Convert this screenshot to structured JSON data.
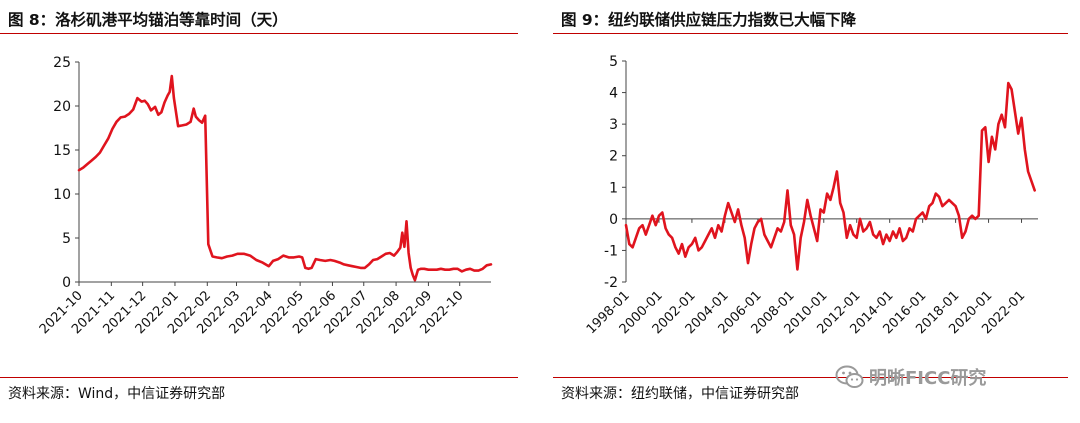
{
  "figures": [
    {
      "title": "图 8：洛杉矶港平均锚泊等靠时间（天）",
      "source": "资料来源：Wind，中信证券研究部"
    },
    {
      "title": "图 9：纽约联储供应链压力指数已大幅下降",
      "source": "资料来源：纽约联储，中信证券研究部"
    }
  ],
  "watermark": {
    "text": "明晰FICC研究",
    "icon": "wechat-icon"
  },
  "colors": {
    "accent": "#c00000",
    "line": "#e0141e",
    "axis": "#444444"
  },
  "chart_data": [
    {
      "type": "line",
      "title": "洛杉矶港平均锚泊等靠时间（天）",
      "xlabel": "",
      "ylabel": "",
      "x_range": [
        "2021-10-01",
        "2022-10-31"
      ],
      "ylim": [
        0,
        25
      ],
      "yticks": [
        "0",
        "5",
        "10",
        "15",
        "20",
        "25"
      ],
      "xticks": [
        "2021-10",
        "2021-11",
        "2021-12",
        "2022-01",
        "2022-02",
        "2022-03",
        "2022-04",
        "2022-05",
        "2022-06",
        "2022-07",
        "2022-08",
        "2022-09",
        "2022-10"
      ],
      "grid": false,
      "legend": "none",
      "series": [
        {
          "x": [
            "2021-10-01",
            "2021-10-05",
            "2021-10-09",
            "2021-10-13",
            "2021-10-17",
            "2021-10-21",
            "2021-10-25",
            "2021-10-29",
            "2021-11-02",
            "2021-11-06",
            "2021-11-10",
            "2021-11-14",
            "2021-11-18",
            "2021-11-22",
            "2021-11-26",
            "2021-11-30",
            "2021-12-03",
            "2021-12-06",
            "2021-12-09",
            "2021-12-13",
            "2021-12-16",
            "2021-12-19",
            "2021-12-22",
            "2021-12-25",
            "2021-12-27",
            "2021-12-29",
            "2021-12-31",
            "2022-01-04",
            "2022-01-08",
            "2022-01-12",
            "2022-01-16",
            "2022-01-19",
            "2022-01-21",
            "2022-01-24",
            "2022-01-27",
            "2022-01-30",
            "2022-02-02",
            "2022-02-06",
            "2022-02-10",
            "2022-02-15",
            "2022-02-20",
            "2022-02-25",
            "2022-03-02",
            "2022-03-08",
            "2022-03-14",
            "2022-03-20",
            "2022-03-26",
            "2022-04-01",
            "2022-04-05",
            "2022-04-10",
            "2022-04-15",
            "2022-04-20",
            "2022-04-25",
            "2022-04-30",
            "2022-05-03",
            "2022-05-06",
            "2022-05-09",
            "2022-05-12",
            "2022-05-16",
            "2022-05-20",
            "2022-05-25",
            "2022-05-30",
            "2022-06-03",
            "2022-06-08",
            "2022-06-12",
            "2022-06-16",
            "2022-06-20",
            "2022-06-24",
            "2022-06-28",
            "2022-07-02",
            "2022-07-06",
            "2022-07-10",
            "2022-07-14",
            "2022-07-18",
            "2022-07-22",
            "2022-07-26",
            "2022-07-30",
            "2022-08-02",
            "2022-08-05",
            "2022-08-07",
            "2022-08-09",
            "2022-08-11",
            "2022-08-13",
            "2022-08-15",
            "2022-08-17",
            "2022-08-19",
            "2022-08-22",
            "2022-08-25",
            "2022-08-28",
            "2022-09-01",
            "2022-09-05",
            "2022-09-09",
            "2022-09-13",
            "2022-09-17",
            "2022-09-21",
            "2022-09-25",
            "2022-09-29",
            "2022-10-03",
            "2022-10-07",
            "2022-10-11",
            "2022-10-15",
            "2022-10-19",
            "2022-10-23",
            "2022-10-27",
            "2022-10-31"
          ],
          "y": [
            12.7,
            13.0,
            13.4,
            13.8,
            14.2,
            14.7,
            15.5,
            16.3,
            17.4,
            18.2,
            18.7,
            18.8,
            19.1,
            19.6,
            20.9,
            20.5,
            20.6,
            20.2,
            19.5,
            19.9,
            19.0,
            19.3,
            20.4,
            21.2,
            21.6,
            23.4,
            20.9,
            17.7,
            17.8,
            17.9,
            18.2,
            19.7,
            18.8,
            18.4,
            18.1,
            18.9,
            4.3,
            2.9,
            2.8,
            2.7,
            2.9,
            3.0,
            3.2,
            3.2,
            3.0,
            2.5,
            2.2,
            1.8,
            2.4,
            2.6,
            3.0,
            2.8,
            2.8,
            2.9,
            2.8,
            1.6,
            1.5,
            1.6,
            2.6,
            2.5,
            2.4,
            2.5,
            2.4,
            2.2,
            2.0,
            1.9,
            1.8,
            1.7,
            1.6,
            1.6,
            2.0,
            2.5,
            2.6,
            2.9,
            3.2,
            3.3,
            3.0,
            3.4,
            3.9,
            5.6,
            4.0,
            6.9,
            3.3,
            1.6,
            0.8,
            0.2,
            1.4,
            1.5,
            1.5,
            1.4,
            1.4,
            1.4,
            1.5,
            1.4,
            1.4,
            1.5,
            1.5,
            1.2,
            1.4,
            1.5,
            1.3,
            1.3,
            1.5,
            1.9,
            2.0
          ]
        }
      ]
    },
    {
      "type": "line",
      "title": "纽约联储供应链压力指数",
      "xlabel": "",
      "ylabel": "",
      "x_range": [
        "1998-01",
        "2023-01"
      ],
      "ylim": [
        -2,
        5
      ],
      "yticks": [
        "-2",
        "-1",
        "0",
        "1",
        "2",
        "3",
        "4",
        "5"
      ],
      "xticks": [
        "1998-01",
        "2000-01",
        "2002-01",
        "2004-01",
        "2006-01",
        "2008-01",
        "2010-01",
        "2012-01",
        "2014-01",
        "2016-01",
        "2018-01",
        "2020-01",
        "2022-01"
      ],
      "grid": false,
      "legend": "none",
      "series": [
        {
          "x": [
            1998.0,
            1998.2,
            1998.4,
            1998.6,
            1998.8,
            1999.0,
            1999.2,
            1999.4,
            1999.6,
            1999.8,
            2000.0,
            2000.2,
            2000.4,
            2000.6,
            2000.8,
            2001.0,
            2001.2,
            2001.4,
            2001.6,
            2001.8,
            2002.0,
            2002.2,
            2002.4,
            2002.6,
            2002.8,
            2003.0,
            2003.2,
            2003.4,
            2003.6,
            2003.8,
            2004.0,
            2004.2,
            2004.4,
            2004.6,
            2004.8,
            2005.0,
            2005.2,
            2005.4,
            2005.6,
            2005.8,
            2006.0,
            2006.2,
            2006.4,
            2006.6,
            2006.8,
            2007.0,
            2007.2,
            2007.4,
            2007.6,
            2007.8,
            2008.0,
            2008.2,
            2008.4,
            2008.6,
            2008.8,
            2009.0,
            2009.2,
            2009.4,
            2009.6,
            2009.8,
            2010.0,
            2010.2,
            2010.4,
            2010.6,
            2010.8,
            2011.0,
            2011.2,
            2011.4,
            2011.6,
            2011.8,
            2012.0,
            2012.2,
            2012.4,
            2012.6,
            2012.8,
            2013.0,
            2013.2,
            2013.4,
            2013.6,
            2013.8,
            2014.0,
            2014.2,
            2014.4,
            2014.6,
            2014.8,
            2015.0,
            2015.2,
            2015.4,
            2015.6,
            2015.8,
            2016.0,
            2016.2,
            2016.4,
            2016.6,
            2016.8,
            2017.0,
            2017.2,
            2017.4,
            2017.6,
            2017.8,
            2018.0,
            2018.2,
            2018.4,
            2018.6,
            2018.8,
            2019.0,
            2019.2,
            2019.4,
            2019.6,
            2019.8,
            2020.0,
            2020.2,
            2020.4,
            2020.6,
            2020.8,
            2021.0,
            2021.2,
            2021.4,
            2021.6,
            2021.8,
            2022.0,
            2022.2,
            2022.4,
            2022.6,
            2022.8
          ],
          "y": [
            -0.2,
            -0.8,
            -0.9,
            -0.6,
            -0.3,
            -0.2,
            -0.5,
            -0.2,
            0.1,
            -0.2,
            0.1,
            0.2,
            -0.3,
            -0.5,
            -0.6,
            -0.9,
            -1.1,
            -0.8,
            -1.2,
            -0.9,
            -0.8,
            -0.6,
            -1.0,
            -0.9,
            -0.7,
            -0.5,
            -0.3,
            -0.6,
            -0.2,
            -0.4,
            0.1,
            0.5,
            0.2,
            -0.1,
            0.3,
            -0.2,
            -0.6,
            -1.4,
            -0.8,
            -0.3,
            -0.1,
            0.0,
            -0.5,
            -0.7,
            -0.9,
            -0.6,
            -0.3,
            -0.4,
            -0.1,
            0.9,
            -0.2,
            -0.5,
            -1.6,
            -0.6,
            -0.1,
            0.6,
            0.1,
            -0.3,
            -0.7,
            0.3,
            0.2,
            0.8,
            0.6,
            1.0,
            1.5,
            0.5,
            0.2,
            -0.6,
            -0.2,
            -0.5,
            -0.6,
            0.0,
            -0.4,
            -0.3,
            -0.1,
            -0.5,
            -0.6,
            -0.4,
            -0.8,
            -0.5,
            -0.7,
            -0.4,
            -0.6,
            -0.3,
            -0.7,
            -0.6,
            -0.3,
            -0.4,
            0.0,
            0.1,
            0.2,
            0.0,
            0.4,
            0.5,
            0.8,
            0.7,
            0.4,
            0.5,
            0.6,
            0.5,
            0.4,
            0.1,
            -0.6,
            -0.4,
            0.0,
            0.1,
            0.0,
            0.1,
            2.8,
            2.9,
            1.8,
            2.6,
            2.2,
            3.0,
            3.3,
            2.9,
            4.3,
            4.1,
            3.4,
            2.7,
            3.2,
            2.2,
            1.5,
            1.2,
            0.9
          ]
        }
      ]
    }
  ]
}
